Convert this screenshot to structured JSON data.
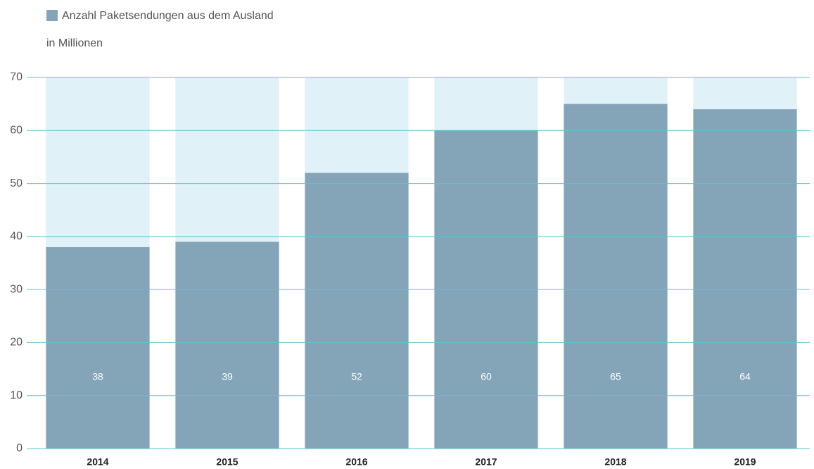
{
  "chart_data": {
    "type": "bar",
    "legend": "Anzahl Paketsendungen aus dem Ausland",
    "subtitle": "in Millionen",
    "categories": [
      "2014",
      "2015",
      "2016",
      "2017",
      "2018",
      "2019"
    ],
    "values": [
      38,
      39,
      52,
      60,
      65,
      64
    ],
    "color": "#84a4b8",
    "background_color": "#e0f1f8",
    "grid_color": "#5cc3cf",
    "ylim": [
      0,
      70
    ],
    "yticks": [
      0,
      10,
      20,
      30,
      40,
      50,
      60,
      70
    ],
    "grid": true
  }
}
